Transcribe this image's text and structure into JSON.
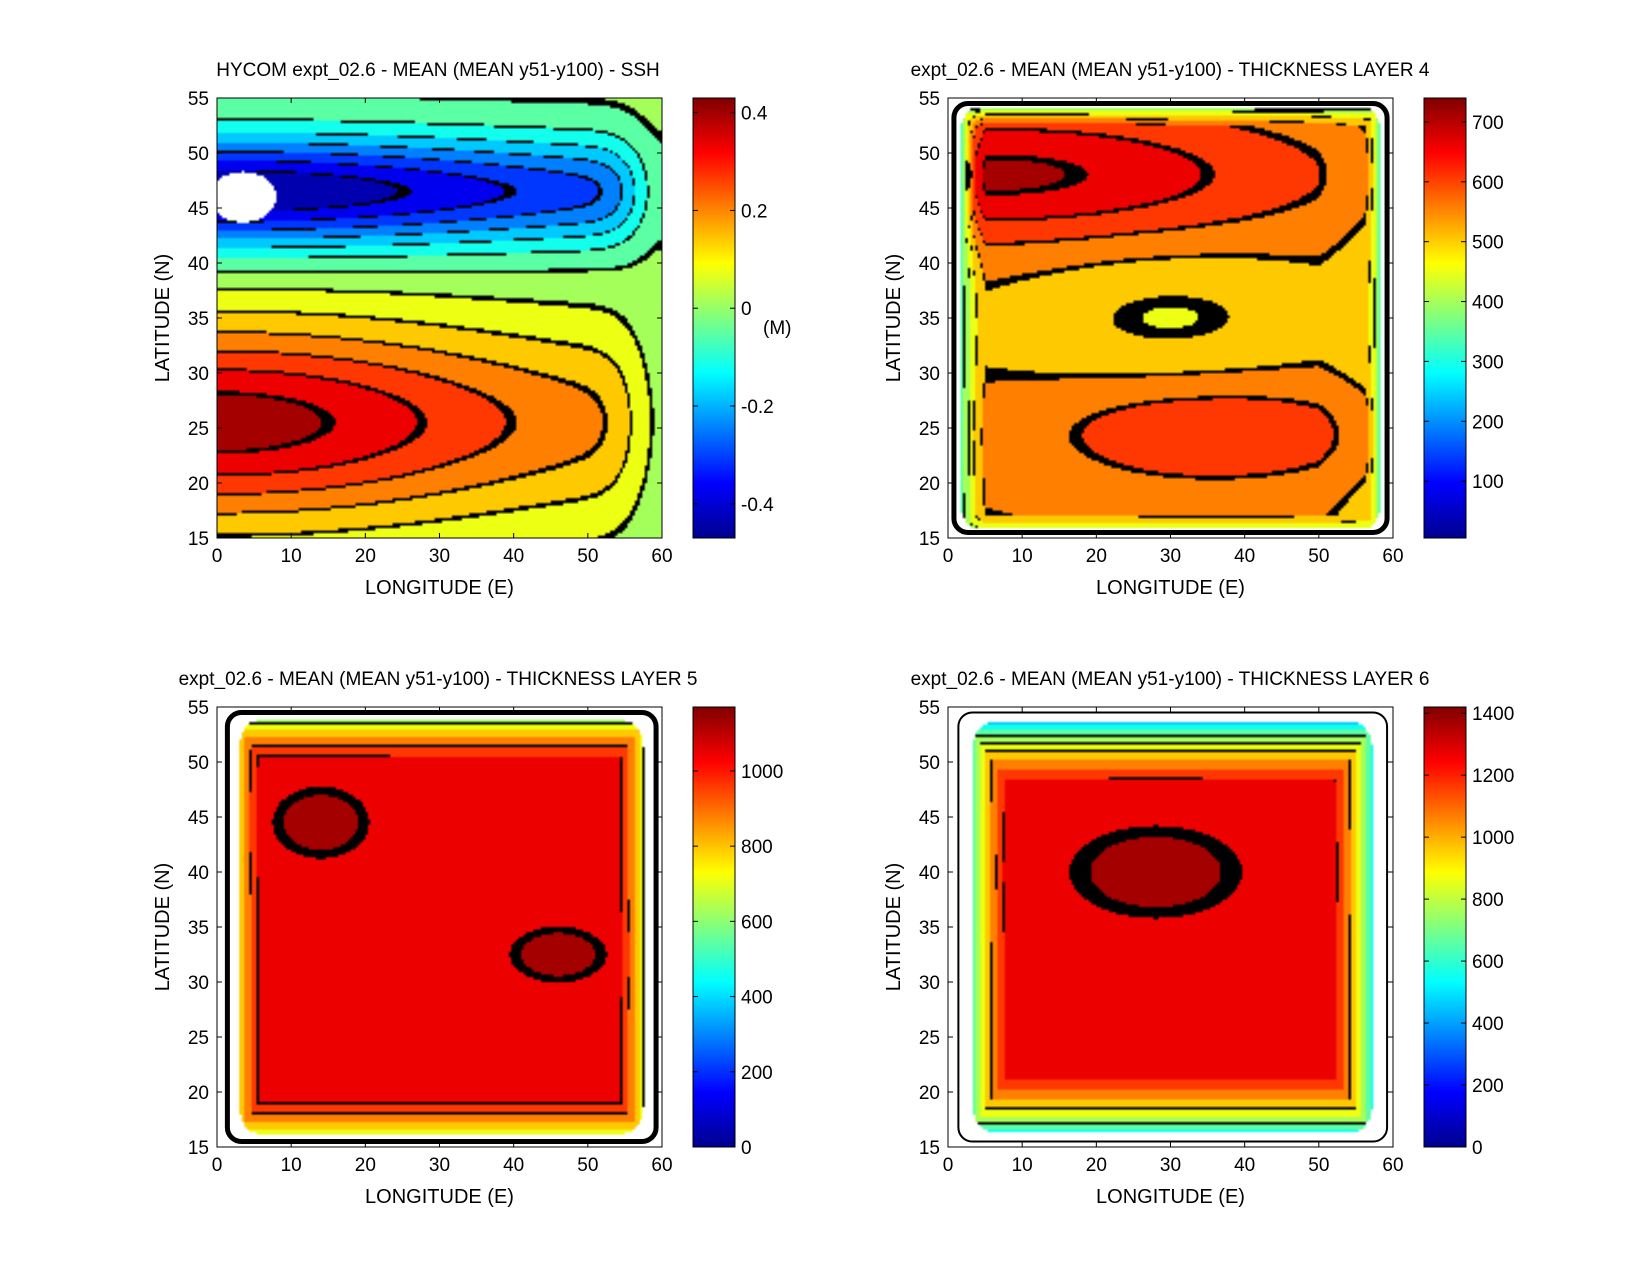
{
  "figure": {
    "colorscale": [
      "#00008f",
      "#0000ff",
      "#0080ff",
      "#00ffff",
      "#80ff80",
      "#ffff00",
      "#ff8000",
      "#ff0000",
      "#800000"
    ],
    "contour_color": "#000000",
    "mask_color": "#ffffff"
  },
  "chart_data": [
    {
      "type": "heatmap",
      "id": "ssh",
      "title": "HYCOM expt_02.6 - MEAN (MEAN y51-y100) - SSH",
      "xlabel": "LONGITUDE (E)",
      "ylabel": "LATITUDE (N)",
      "xlim": [
        0,
        60
      ],
      "ylim": [
        15,
        55
      ],
      "xticks": [
        0,
        10,
        20,
        30,
        40,
        50,
        60
      ],
      "yticks": [
        15,
        20,
        25,
        30,
        35,
        40,
        45,
        50,
        55
      ],
      "colorbar": {
        "range": [
          -0.47,
          0.43
        ],
        "ticks": [
          -0.4,
          -0.2,
          0,
          0.2,
          0.4
        ],
        "unit_label": "(M)"
      },
      "field": {
        "gyres": [
          {
            "kind": "subpolar_low",
            "lon": 6,
            "lat": 46.5,
            "value": -0.47,
            "rx": 50,
            "ry": 5,
            "edge_width": 1.0
          },
          {
            "kind": "subtropical_high",
            "lon": 3,
            "lat": 25.5,
            "value": 0.4,
            "rx": 58,
            "ry": 9,
            "edge_width": 2.2
          }
        ],
        "boundary_value": 0.0,
        "coast_value": null,
        "background": 0.0
      }
    },
    {
      "type": "heatmap",
      "id": "layer4",
      "title": "expt_02.6 - MEAN (MEAN y51-y100) - THICKNESS LAYER 4",
      "xlabel": "LONGITUDE (E)",
      "ylabel": "LATITUDE (N)",
      "xlim": [
        0,
        60
      ],
      "ylim": [
        15,
        55
      ],
      "xticks": [
        0,
        10,
        20,
        30,
        40,
        50,
        60
      ],
      "yticks": [
        15,
        20,
        25,
        30,
        35,
        40,
        45,
        50,
        55
      ],
      "colorbar": {
        "range": [
          5,
          740
        ],
        "ticks": [
          100,
          200,
          300,
          400,
          500,
          600,
          700
        ],
        "unit_label": ""
      },
      "field": {
        "gyres": [
          {
            "kind": "north_max",
            "lon": 6,
            "lat": 48,
            "value": 700,
            "rx": 42,
            "ry": 6,
            "edge_width": 1.5
          },
          {
            "kind": "south_max",
            "lon": 36,
            "lat": 24.5,
            "value": 630,
            "rx": 24,
            "ry": 5,
            "edge_width": 1.5
          }
        ],
        "boundary_value": 360,
        "coast_value": 380,
        "background": 530
      }
    },
    {
      "type": "heatmap",
      "id": "layer5",
      "title": "expt_02.6 - MEAN (MEAN y51-y100) - THICKNESS LAYER 5",
      "xlabel": "LONGITUDE (E)",
      "ylabel": "LATITUDE (N)",
      "xlim": [
        0,
        60
      ],
      "ylim": [
        15,
        55
      ],
      "xticks": [
        0,
        10,
        20,
        30,
        40,
        50,
        60
      ],
      "yticks": [
        15,
        20,
        25,
        30,
        35,
        40,
        45,
        50,
        55
      ],
      "colorbar": {
        "range": [
          0,
          1170
        ],
        "ticks": [
          0,
          200,
          400,
          600,
          800,
          1000
        ],
        "unit_label": ""
      },
      "field": {
        "gyres": [
          {
            "kind": "nw_max",
            "lon": 14,
            "lat": 44.5,
            "value": 1110,
            "rx": 9,
            "ry": 4.5,
            "edge_width": 1.5
          },
          {
            "kind": "se_max",
            "lon": 46,
            "lat": 32.5,
            "value": 1110,
            "rx": 9,
            "ry": 3.5,
            "edge_width": 1.5
          }
        ],
        "boundary_value": 520,
        "coast_value": null,
        "background": 1040
      }
    },
    {
      "type": "heatmap",
      "id": "layer6",
      "title": "expt_02.6 - MEAN (MEAN y51-y100) - THICKNESS LAYER 6",
      "xlabel": "LONGITUDE (E)",
      "ylabel": "LATITUDE (N)",
      "xlim": [
        0,
        60
      ],
      "ylim": [
        15,
        55
      ],
      "xticks": [
        0,
        10,
        20,
        30,
        40,
        50,
        60
      ],
      "yticks": [
        15,
        20,
        25,
        30,
        35,
        40,
        45,
        50,
        55
      ],
      "colorbar": {
        "range": [
          0,
          1420
        ],
        "ticks": [
          0,
          200,
          400,
          600,
          800,
          1000,
          1200,
          1400
        ],
        "unit_label": ""
      },
      "field": {
        "gyres": [
          {
            "kind": "central_max",
            "lon": 28,
            "lat": 40,
            "value": 1345,
            "rx": 18,
            "ry": 6.5,
            "edge_width": 1.5
          }
        ],
        "boundary_value": 250,
        "coast_value": null,
        "background": 1250
      }
    }
  ]
}
